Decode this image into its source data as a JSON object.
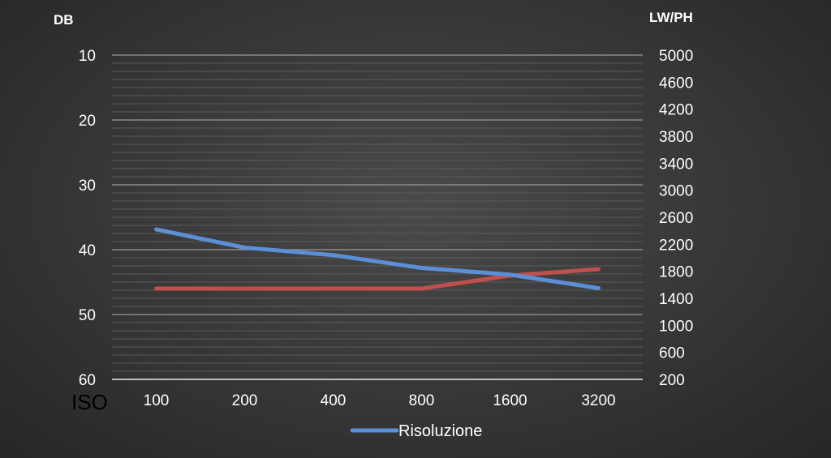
{
  "chart_data": {
    "type": "line",
    "categories": [
      "100",
      "200",
      "400",
      "800",
      "1600",
      "3200"
    ],
    "left_axis": {
      "title": "DB",
      "ticks": [
        "10",
        "20",
        "30",
        "40",
        "50",
        "60"
      ],
      "range": [
        10,
        60
      ],
      "inverted": true
    },
    "right_axis": {
      "title": "LW/PH",
      "ticks": [
        "5000",
        "4600",
        "4200",
        "3800",
        "3400",
        "3000",
        "2600",
        "2200",
        "1800",
        "1400",
        "1000",
        "600",
        "200"
      ],
      "range": [
        200,
        5000
      ]
    },
    "x_axis_label": "ISO",
    "series": [
      {
        "name": "Risoluzione",
        "axis": "right",
        "color": "#5b8fd6",
        "values": [
          2420,
          2150,
          2040,
          1850,
          1750,
          1550
        ]
      },
      {
        "axis": "left",
        "color": "#c0504d",
        "values": [
          46,
          46,
          46,
          46,
          44,
          43
        ]
      }
    ],
    "legend": {
      "position": "bottom",
      "entries": [
        "Risoluzione"
      ]
    },
    "grid": true
  }
}
